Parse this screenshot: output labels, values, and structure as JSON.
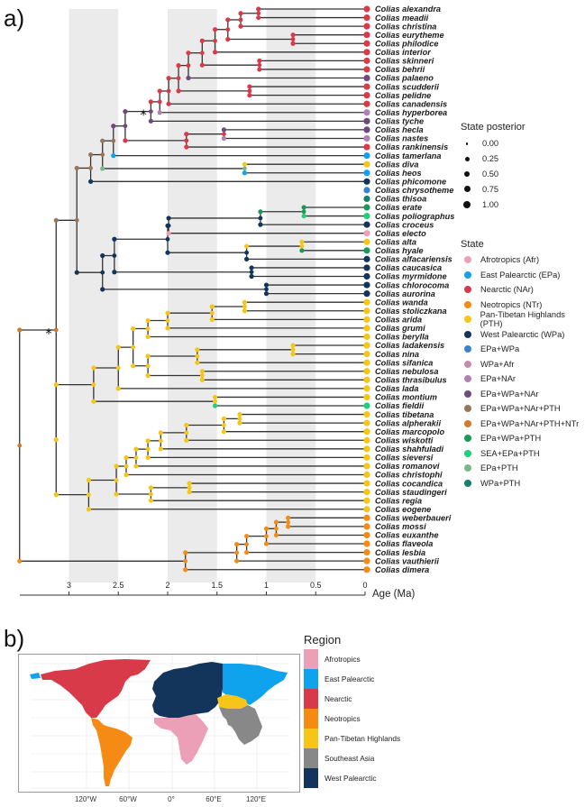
{
  "panel_a_label": "a)",
  "panel_b_label": "b)",
  "chart_data": {
    "type": "phylogeny",
    "title": "",
    "xlabel": "Age (Ma)",
    "x_ticks": [
      "3",
      "2.5",
      "2",
      "1.5",
      "1",
      "0.5",
      "0"
    ],
    "x_tick_values": [
      3,
      2.5,
      2,
      1.5,
      1,
      0.5,
      0
    ],
    "xlim": [
      3.5,
      0
    ],
    "shaded_bands": [
      [
        3,
        2.5
      ],
      [
        2,
        1.5
      ],
      [
        1,
        0.5
      ]
    ],
    "state_colors": {
      "Afr": "#eba0b8",
      "EPa": "#0fa3ee",
      "NAr": "#d83a4a",
      "NTr": "#f58b14",
      "PTH": "#f5c518",
      "WPa": "#14355b",
      "EPa+WPa": "#3a82d0",
      "WPa+Afr": "#c98ab0",
      "EPa+NAr": "#b082b4",
      "EPa+WPa+NAr": "#6e4a7e",
      "EPa+WPa+NAr+PTH": "#98765a",
      "EPa+WPa+NAr+PTH+NTr": "#d27a2c",
      "EPa+WPa+PTH": "#1a9a5a",
      "SEA+EPa+PTH": "#1fd07a",
      "EPa+PTH": "#7bb889",
      "WPa+PTH": "#17806a"
    },
    "tips": [
      {
        "name": "Colias alexandra",
        "state": "NAr"
      },
      {
        "name": "Colias meadii",
        "state": "NAr"
      },
      {
        "name": "Colias christina",
        "state": "NAr"
      },
      {
        "name": "Colias eurytheme",
        "state": "NAr"
      },
      {
        "name": "Colias philodice",
        "state": "NAr"
      },
      {
        "name": "Colias interior",
        "state": "NAr"
      },
      {
        "name": "Colias skinneri",
        "state": "NAr"
      },
      {
        "name": "Colias behrii",
        "state": "NAr"
      },
      {
        "name": "Colias palaeno",
        "state": "EPa+WPa+NAr"
      },
      {
        "name": "Colias scudderii",
        "state": "NAr"
      },
      {
        "name": "Colias pelidne",
        "state": "NAr"
      },
      {
        "name": "Colias canadensis",
        "state": "NAr"
      },
      {
        "name": "Colias hyperborea",
        "state": "EPa+NAr"
      },
      {
        "name": "Colias tyche",
        "state": "EPa+WPa+NAr"
      },
      {
        "name": "Colias hecla",
        "state": "EPa+WPa+NAr"
      },
      {
        "name": "Colias nastes",
        "state": "EPa+NAr"
      },
      {
        "name": "Colias rankinensis",
        "state": "NAr"
      },
      {
        "name": "Colias tamerlana",
        "state": "EPa"
      },
      {
        "name": "Colias diva",
        "state": "PTH"
      },
      {
        "name": "Colias heos",
        "state": "EPa"
      },
      {
        "name": "Colias phicomone",
        "state": "WPa"
      },
      {
        "name": "Colias chrysotheme",
        "state": "EPa+WPa"
      },
      {
        "name": "Colias thisoa",
        "state": "WPa+PTH"
      },
      {
        "name": "Colias erate",
        "state": "EPa+WPa+PTH"
      },
      {
        "name": "Colias poliographus",
        "state": "SEA+EPa+PTH"
      },
      {
        "name": "Colias croceus",
        "state": "WPa"
      },
      {
        "name": "Colias electo",
        "state": "Afr"
      },
      {
        "name": "Colias alta",
        "state": "PTH"
      },
      {
        "name": "Colias hyale",
        "state": "EPa+WPa+PTH"
      },
      {
        "name": "Colias alfacariensis",
        "state": "WPa"
      },
      {
        "name": "Colias caucasica",
        "state": "WPa"
      },
      {
        "name": "Colias myrmidone",
        "state": "WPa"
      },
      {
        "name": "Colias chlorocoma",
        "state": "WPa"
      },
      {
        "name": "Colias aurorina",
        "state": "WPa"
      },
      {
        "name": "Colias wanda",
        "state": "PTH"
      },
      {
        "name": "Colias stoliczkana",
        "state": "PTH"
      },
      {
        "name": "Colias arida",
        "state": "PTH"
      },
      {
        "name": "Colias grumi",
        "state": "PTH"
      },
      {
        "name": "Colias berylla",
        "state": "PTH"
      },
      {
        "name": "Colias ladakensis",
        "state": "PTH"
      },
      {
        "name": "Colias nina",
        "state": "PTH"
      },
      {
        "name": "Colias sifanica",
        "state": "PTH"
      },
      {
        "name": "Colias nebulosa",
        "state": "PTH"
      },
      {
        "name": "Colias thrasibulus",
        "state": "PTH"
      },
      {
        "name": "Colias lada",
        "state": "PTH"
      },
      {
        "name": "Colias montium",
        "state": "PTH"
      },
      {
        "name": "Colias fieldii",
        "state": "SEA+EPa+PTH"
      },
      {
        "name": "Colias tibetana",
        "state": "PTH"
      },
      {
        "name": "Colias alpherakii",
        "state": "PTH"
      },
      {
        "name": "Colias marcopolo",
        "state": "PTH"
      },
      {
        "name": "Colias wiskotti",
        "state": "PTH"
      },
      {
        "name": "Colias shahfuladi",
        "state": "PTH"
      },
      {
        "name": "Colias sieversi",
        "state": "PTH"
      },
      {
        "name": "Colias romanovi",
        "state": "PTH"
      },
      {
        "name": "Colias christophi",
        "state": "PTH"
      },
      {
        "name": "Colias cocandica",
        "state": "PTH"
      },
      {
        "name": "Colias staudingeri",
        "state": "PTH"
      },
      {
        "name": "Colias regia",
        "state": "PTH"
      },
      {
        "name": "Colias eogene",
        "state": "PTH"
      },
      {
        "name": "Colias weberbaueri",
        "state": "NTr"
      },
      {
        "name": "Colias mossi",
        "state": "NTr"
      },
      {
        "name": "Colias euxanthe",
        "state": "NTr"
      },
      {
        "name": "Colias flaveola",
        "state": "NTr"
      },
      {
        "name": "Colias lesbia",
        "state": "NTr"
      },
      {
        "name": "Colias vauthierii",
        "state": "NTr"
      },
      {
        "name": "Colias dimera",
        "state": "NTr"
      }
    ],
    "tree": {
      "age": 3.5,
      "state": "EPa+WPa+NAr+PTH+NTr",
      "children": [
        {
          "age": 3.13,
          "state": "EPa+WPa+NAr+PTH+NTr",
          "starred": true,
          "children": [
            {
              "age": 2.92,
              "state": "EPa+WPa+NAr+PTH",
              "children": [
                {
                  "age": 2.78,
                  "state": "EPa+WPa+NAr+PTH",
                  "children": [
                    {
                      "age": 2.66,
                      "state": "EPa+WPa+NAr+PTH",
                      "children": [
                        {
                          "age": 2.55,
                          "state": "EPa+WPa+NAr+PTH",
                          "children": [
                            {
                              "age": 2.43,
                              "state": "EPa+WPa+NAr",
                              "children": [
                                {
                                  "age": 2.17,
                                  "state": "EPa+WPa+NAr",
                                  "starred": true,
                                  "children": [
                                    {
                                      "age": 2.08,
                                      "state": "NAr",
                                      "children": [
                                        {
                                          "age": 1.99,
                                          "state": "NAr",
                                          "children": [
                                            {
                                              "age": 1.89,
                                              "state": "NAr",
                                              "children": [
                                                {
                                                  "age": 1.79,
                                                  "state": "NAr",
                                                  "children": [
                                                    {
                                                      "age": 1.65,
                                                      "state": "NAr",
                                                      "children": [
                                                        {
                                                          "age": 1.52,
                                                          "state": "NAr",
                                                          "children": [
                                                            {
                                                              "age": 1.39,
                                                              "state": "NAr",
                                                              "children": [
                                                                {
                                                                  "age": 1.26,
                                                                  "state": "NAr",
                                                                  "children": [
                                                                    {
                                                                      "age": 1.08,
                                                                      "state": "NAr",
                                                                      "children": [
                                                                        {
                                                                          "tip": 0
                                                                        },
                                                                        {
                                                                          "tip": 1
                                                                        }
                                                                      ]
                                                                    },
                                                                    {
                                                                      "tip": 2
                                                                    }
                                                                  ]
                                                                },
                                                                {
                                                                  "age": 0.73,
                                                                  "state": "NAr",
                                                                  "children": [
                                                                    {
                                                                      "tip": 3
                                                                    },
                                                                    {
                                                                      "tip": 4
                                                                    }
                                                                  ]
                                                                }
                                                              ]
                                                            },
                                                            {
                                                              "tip": 5
                                                            }
                                                          ]
                                                        },
                                                        {
                                                          "age": 1.07,
                                                          "state": "NAr",
                                                          "children": [
                                                            {
                                                              "tip": 6
                                                            },
                                                            {
                                                              "tip": 7
                                                            }
                                                          ]
                                                        }
                                                      ]
                                                    },
                                                    {
                                                      "tip": 8
                                                    }
                                                  ]
                                                },
                                                {
                                                  "age": 1.17,
                                                  "state": "NAr",
                                                  "children": [
                                                    {
                                                      "tip": 9
                                                    },
                                                    {
                                                      "tip": 10
                                                    }
                                                  ]
                                                }
                                              ]
                                            },
                                            {
                                              "tip": 11
                                            }
                                          ]
                                        },
                                        {
                                          "tip": 12
                                        }
                                      ]
                                    },
                                    {
                                      "tip": 13
                                    }
                                  ]
                                },
                                {
                                  "age": 1.81,
                                  "state": "NAr",
                                  "children": [
                                    {
                                      "age": 1.43,
                                      "state": "NAr",
                                      "children": [
                                        {
                                          "tip": 14
                                        },
                                        {
                                          "tip": 15
                                        }
                                      ]
                                    },
                                    {
                                      "tip": 16
                                    }
                                  ]
                                }
                              ]
                            },
                            {
                              "tip": 17
                            }
                          ]
                        },
                        {
                          "age": 1.22,
                          "state": "EPa+PTH",
                          "children": [
                            {
                              "tip": 18
                            },
                            {
                              "tip": 19
                            }
                          ]
                        }
                      ]
                    },
                    {
                      "tip": 20
                    }
                  ]
                },
                {
                  "age": 2.02,
                  "state": "WPa",
                  "children": [
                    {
                      "tip": 21
                    },
                    {
                      "tip": 22
                    }
                  ]
                }
              ]
            },
            {
              "age": 3.32,
              "state": "EPa+WPa+NAr+PTH+NTr",
              "children": []
            }
          ]
        },
        {
          "age": 3.5,
          "state": "NTr",
          "children": []
        }
      ]
    },
    "legend_posterior": {
      "title": "State posterior",
      "values": [
        "0.00",
        "0.25",
        "0.50",
        "0.75",
        "1.00"
      ]
    },
    "legend_state": {
      "title": "State",
      "entries": [
        "Afrotropics (Afr)",
        "East Palearctic (EPa)",
        "Nearctic (NAr)",
        "Neotropics (NTr)",
        "Pan-Tibetan Highlands (PTH)",
        "West Palearctic (WPa)",
        "EPa+WPa",
        "WPa+Afr",
        "EPa+NAr",
        "EPa+WPa+NAr",
        "EPa+WPa+NAr+PTH",
        "EPa+WPa+NAr+PTH+NTr",
        "EPa+WPa+PTH",
        "SEA+EPa+PTH",
        "EPa+PTH",
        "WPa+PTH"
      ]
    }
  },
  "map": {
    "legend_title": "Region",
    "regions": [
      {
        "name": "Afrotropics",
        "color": "#eba0b8"
      },
      {
        "name": "East Palearctic",
        "color": "#0fa3ee"
      },
      {
        "name": "Nearctic",
        "color": "#d83a4a"
      },
      {
        "name": "Neotropics",
        "color": "#f58b14"
      },
      {
        "name": "Pan-Tibetan Highlands",
        "color": "#f5c518"
      },
      {
        "name": "Southeast Asia",
        "color": "#888888"
      },
      {
        "name": "West Palearctic",
        "color": "#14355b"
      }
    ],
    "x_ticks": [
      "120°W",
      "60°W",
      "0°",
      "60°E",
      "120°E"
    ]
  }
}
